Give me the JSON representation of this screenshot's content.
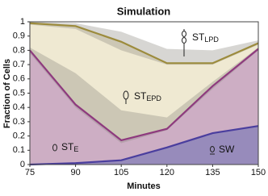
{
  "chart_data": {
    "type": "line",
    "title": "Simulation",
    "x_label": "Minutes",
    "y_label": "Fraction of Cells",
    "x": [
      75,
      90,
      105,
      120,
      135,
      150
    ],
    "xlim": [
      75,
      150
    ],
    "xticks": [
      75,
      90,
      105,
      120,
      135,
      150
    ],
    "ylim": [
      0,
      1
    ],
    "yticks": [
      0,
      0.1,
      0.2,
      0.3,
      0.4,
      0.5,
      0.6,
      0.7,
      0.8,
      0.9,
      1
    ],
    "grid": false,
    "series": [
      {
        "color": "#9c8b3c",
        "fill": "#efe9d2",
        "values": [
          0.99,
          0.97,
          0.86,
          0.71,
          0.71,
          0.85
        ],
        "band": {
          "upper": [
            1.0,
            0.99,
            0.93,
            0.81,
            0.8,
            0.87
          ],
          "lower": [
            0.98,
            0.95,
            0.8,
            0.7,
            0.7,
            0.84
          ]
        }
      },
      {
        "color": "#8e3a7e",
        "fill": "#cdaec4",
        "values": [
          0.8,
          0.42,
          0.17,
          0.25,
          0.55,
          0.81
        ],
        "band": {
          "upper": [
            0.82,
            0.64,
            0.38,
            0.33,
            0.58,
            0.82
          ],
          "lower": [
            0.78,
            0.4,
            0.15,
            0.24,
            0.53,
            0.8
          ]
        }
      },
      {
        "color": "#4a3e9e",
        "fill": "#978bbb",
        "values": [
          0.0,
          0.01,
          0.03,
          0.12,
          0.22,
          0.27
        ]
      }
    ],
    "annotations": [
      {
        "text": "ST",
        "subscript": "LPD"
      },
      {
        "text": "ST",
        "subscript": "EPD"
      },
      {
        "text": "ST",
        "subscript": "E"
      },
      {
        "text": "SW"
      }
    ]
  }
}
